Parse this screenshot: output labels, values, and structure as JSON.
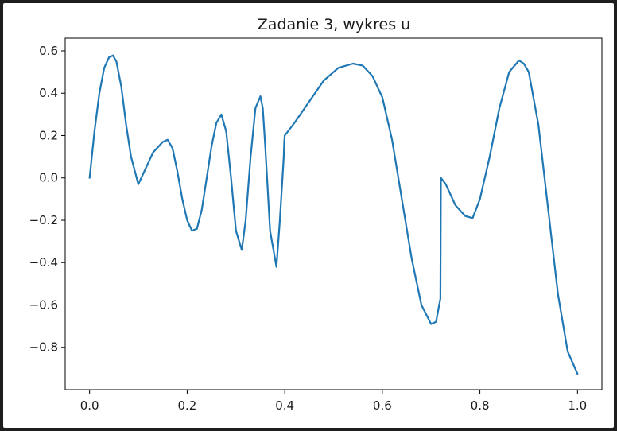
{
  "chart_data": {
    "type": "line",
    "title": "Zadanie 3, wykres u",
    "xlabel": "",
    "ylabel": "",
    "xlim": [
      -0.05,
      1.05
    ],
    "ylim": [
      -1.0,
      0.66
    ],
    "xticks": [
      0.0,
      0.2,
      0.4,
      0.6,
      0.8,
      1.0
    ],
    "xtick_labels": [
      "0.0",
      "0.2",
      "0.4",
      "0.6",
      "0.8",
      "1.0"
    ],
    "yticks": [
      0.6,
      0.4,
      0.2,
      0.0,
      -0.2,
      -0.4,
      -0.6,
      -0.8
    ],
    "ytick_labels": [
      "0.6",
      "0.4",
      "0.2",
      "0.0",
      "−0.2",
      "−0.4",
      "−0.6",
      "−0.8"
    ],
    "grid": false,
    "series": [
      {
        "color": "#1f77b4",
        "x": [
          0.0,
          0.01,
          0.02,
          0.03,
          0.04,
          0.048,
          0.055,
          0.065,
          0.075,
          0.085,
          0.1,
          0.11,
          0.13,
          0.15,
          0.16,
          0.17,
          0.18,
          0.19,
          0.2,
          0.21,
          0.22,
          0.23,
          0.24,
          0.25,
          0.26,
          0.27,
          0.28,
          0.29,
          0.3,
          0.312,
          0.32,
          0.33,
          0.34,
          0.35,
          0.355,
          0.36,
          0.37,
          0.383,
          0.39,
          0.398,
          0.399,
          0.4,
          0.42,
          0.45,
          0.48,
          0.51,
          0.54,
          0.56,
          0.58,
          0.6,
          0.62,
          0.64,
          0.66,
          0.68,
          0.7,
          0.71,
          0.719,
          0.72,
          0.73,
          0.75,
          0.77,
          0.785,
          0.8,
          0.82,
          0.84,
          0.86,
          0.88,
          0.89,
          0.9,
          0.92,
          0.94,
          0.96,
          0.98,
          1.0
        ],
        "y": [
          0.0,
          0.22,
          0.4,
          0.52,
          0.57,
          0.578,
          0.55,
          0.43,
          0.25,
          0.1,
          -0.03,
          0.02,
          0.12,
          0.17,
          0.18,
          0.14,
          0.03,
          -0.1,
          -0.2,
          -0.25,
          -0.24,
          -0.15,
          0.0,
          0.15,
          0.26,
          0.3,
          0.22,
          0.0,
          -0.25,
          -0.34,
          -0.2,
          0.1,
          0.33,
          0.385,
          0.33,
          0.15,
          -0.25,
          -0.42,
          -0.2,
          0.1,
          0.17,
          0.2,
          0.26,
          0.36,
          0.46,
          0.52,
          0.54,
          0.53,
          0.48,
          0.38,
          0.18,
          -0.1,
          -0.38,
          -0.6,
          -0.69,
          -0.68,
          -0.57,
          0.0,
          -0.03,
          -0.13,
          -0.18,
          -0.19,
          -0.1,
          0.1,
          0.33,
          0.5,
          0.555,
          0.54,
          0.5,
          0.25,
          -0.15,
          -0.55,
          -0.82,
          -0.925
        ]
      }
    ]
  }
}
